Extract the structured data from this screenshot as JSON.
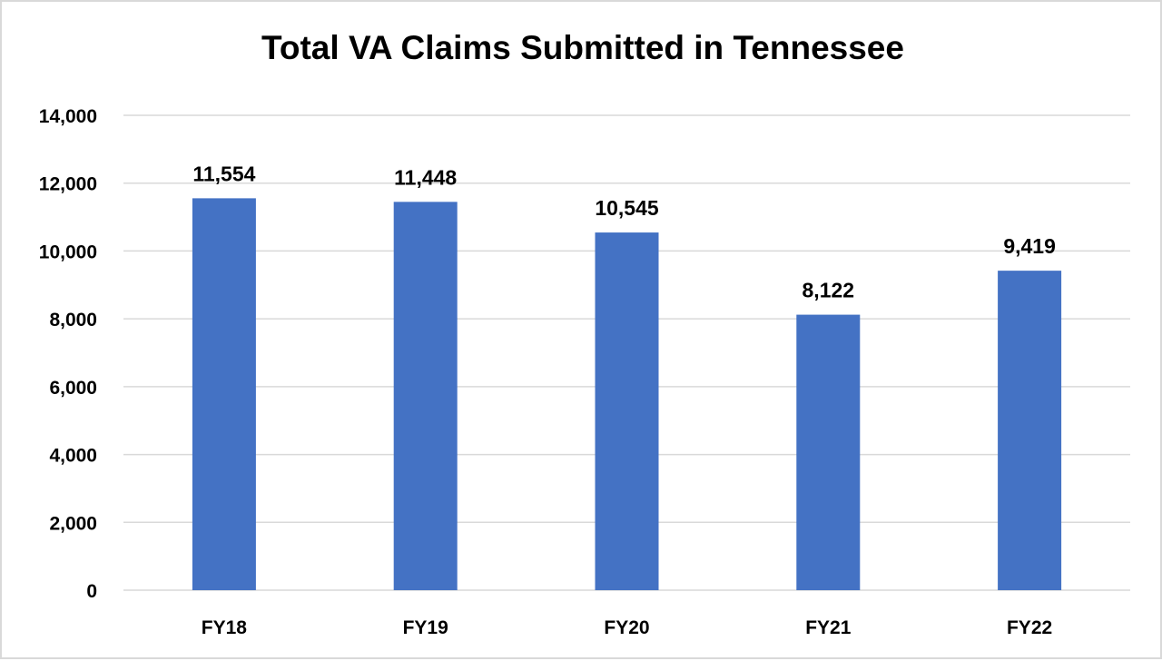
{
  "chart_data": {
    "type": "bar",
    "title": "Total VA Claims Submitted in Tennessee",
    "categories": [
      "FY18",
      "FY19",
      "FY20",
      "FY21",
      "FY22"
    ],
    "values": [
      11554,
      11448,
      10545,
      8122,
      9419
    ],
    "data_labels": [
      "11,554",
      "11,448",
      "10,545",
      "8,122",
      "9,419"
    ],
    "ylim": [
      0,
      14000
    ],
    "yticks": [
      "0",
      "2,000",
      "4,000",
      "6,000",
      "8,000",
      "10,000",
      "12,000",
      "14,000"
    ],
    "grid": true,
    "legend": "none",
    "bar_color": "#4472C4",
    "grid_color": "#d9d9d9"
  }
}
